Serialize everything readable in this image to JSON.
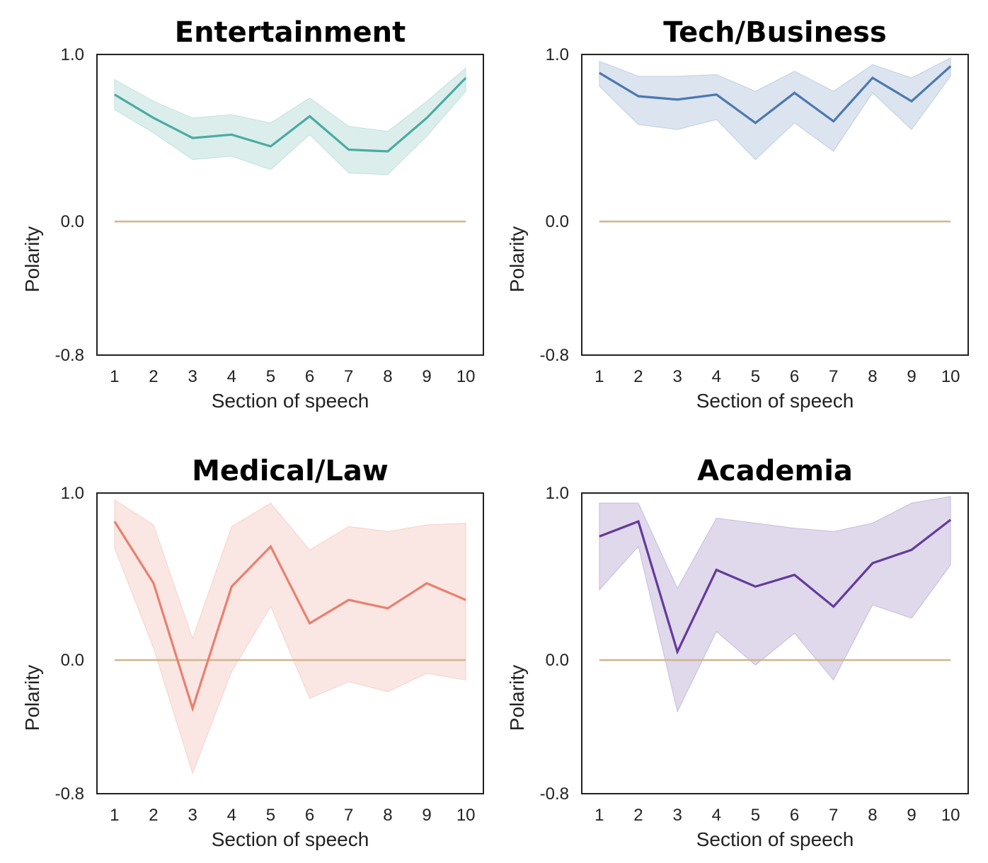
{
  "chart_data": [
    {
      "type": "line",
      "title": "Entertainment",
      "xlabel": "Section of speech",
      "ylabel": "Polarity",
      "x": [
        1,
        2,
        3,
        4,
        5,
        6,
        7,
        8,
        9,
        10
      ],
      "xlim": [
        0.55,
        10.45
      ],
      "ylim": [
        -0.8,
        1.0
      ],
      "yticks": [
        1.0,
        0.0,
        -0.8
      ],
      "ytick_labels": [
        "1.0",
        "0.0",
        "-0.8"
      ],
      "series": [
        {
          "color": "#4aaba2",
          "values": [
            0.76,
            0.62,
            0.5,
            0.52,
            0.45,
            0.63,
            0.43,
            0.42,
            0.62,
            0.86
          ],
          "ci_low": [
            0.67,
            0.53,
            0.37,
            0.39,
            0.31,
            0.52,
            0.29,
            0.28,
            0.51,
            0.78
          ],
          "ci_high": [
            0.85,
            0.72,
            0.62,
            0.64,
            0.59,
            0.74,
            0.57,
            0.54,
            0.72,
            0.92
          ]
        }
      ],
      "reference_line": {
        "y": 0.0,
        "color": "#d2b48c"
      }
    },
    {
      "type": "line",
      "title": "Tech/Business",
      "xlabel": "Section of speech",
      "ylabel": "Polarity",
      "x": [
        1,
        2,
        3,
        4,
        5,
        6,
        7,
        8,
        9,
        10
      ],
      "xlim": [
        0.55,
        10.45
      ],
      "ylim": [
        -0.8,
        1.0
      ],
      "yticks": [
        1.0,
        0.0,
        -0.8
      ],
      "ytick_labels": [
        "1.0",
        "0.0",
        "-0.8"
      ],
      "series": [
        {
          "color": "#4c78b0",
          "values": [
            0.89,
            0.75,
            0.73,
            0.76,
            0.59,
            0.77,
            0.6,
            0.86,
            0.72,
            0.93
          ],
          "ci_low": [
            0.81,
            0.58,
            0.55,
            0.61,
            0.37,
            0.59,
            0.42,
            0.77,
            0.55,
            0.87
          ],
          "ci_high": [
            0.96,
            0.87,
            0.87,
            0.88,
            0.78,
            0.9,
            0.78,
            0.94,
            0.86,
            0.98
          ]
        }
      ],
      "reference_line": {
        "y": 0.0,
        "color": "#d2b48c"
      }
    },
    {
      "type": "line",
      "title": "Medical/Law",
      "xlabel": "Section of speech",
      "ylabel": "Polarity",
      "x": [
        1,
        2,
        3,
        4,
        5,
        6,
        7,
        8,
        9,
        10
      ],
      "xlim": [
        0.55,
        10.45
      ],
      "ylim": [
        -0.8,
        1.0
      ],
      "yticks": [
        1.0,
        0.0,
        -0.8
      ],
      "ytick_labels": [
        "1.0",
        "0.0",
        "-0.8"
      ],
      "series": [
        {
          "color": "#e8806f",
          "values": [
            0.83,
            0.46,
            -0.29,
            0.44,
            0.68,
            0.22,
            0.36,
            0.31,
            0.46,
            0.36
          ],
          "ci_low": [
            0.67,
            0.07,
            -0.68,
            -0.07,
            0.32,
            -0.23,
            -0.13,
            -0.19,
            -0.08,
            -0.12
          ],
          "ci_high": [
            0.96,
            0.81,
            0.13,
            0.8,
            0.94,
            0.66,
            0.8,
            0.77,
            0.81,
            0.82
          ]
        }
      ],
      "reference_line": {
        "y": 0.0,
        "color": "#d2b48c"
      }
    },
    {
      "type": "line",
      "title": "Academia",
      "xlabel": "Section of speech",
      "ylabel": "Polarity",
      "x": [
        1,
        2,
        3,
        4,
        5,
        6,
        7,
        8,
        9,
        10
      ],
      "xlim": [
        0.55,
        10.45
      ],
      "ylim": [
        -0.8,
        1.0
      ],
      "yticks": [
        1.0,
        0.0,
        -0.8
      ],
      "ytick_labels": [
        "1.0",
        "0.0",
        "-0.8"
      ],
      "series": [
        {
          "color": "#633a9c",
          "values": [
            0.74,
            0.83,
            0.05,
            0.54,
            0.44,
            0.51,
            0.32,
            0.58,
            0.66,
            0.84
          ],
          "ci_low": [
            0.42,
            0.68,
            -0.31,
            0.17,
            -0.03,
            0.16,
            -0.12,
            0.33,
            0.25,
            0.57
          ],
          "ci_high": [
            0.94,
            0.94,
            0.43,
            0.85,
            0.82,
            0.79,
            0.77,
            0.82,
            0.94,
            0.98
          ]
        }
      ],
      "reference_line": {
        "y": 0.0,
        "color": "#d2b48c"
      }
    }
  ]
}
